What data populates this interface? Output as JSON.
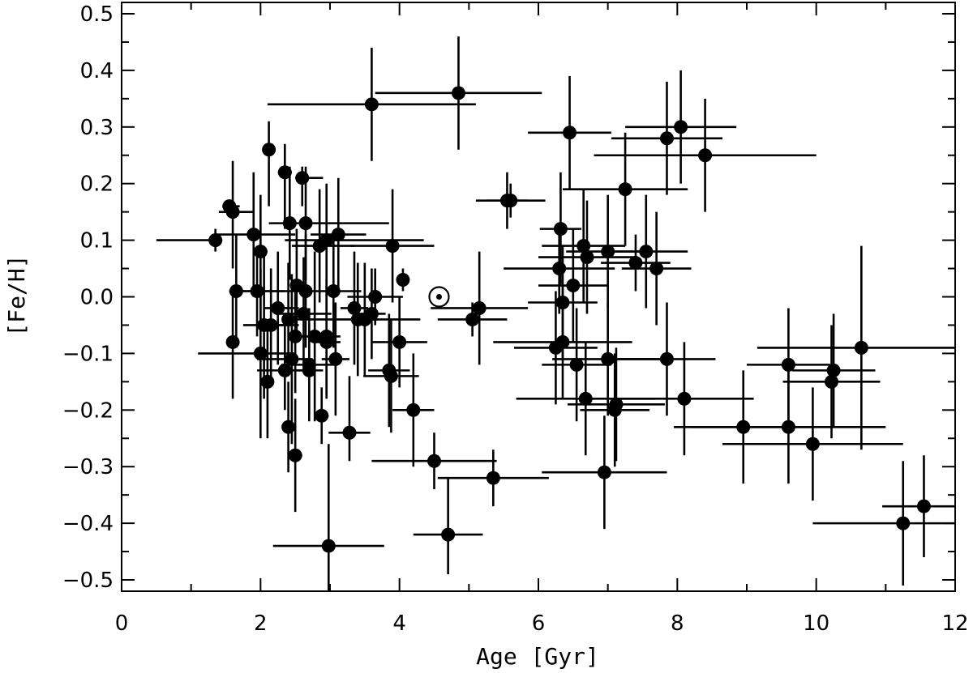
{
  "chart_data": {
    "type": "scatter",
    "xlabel": "Age [Gyr]",
    "ylabel": "[Fe/H]",
    "xlim": [
      0,
      12
    ],
    "ylim": [
      -0.52,
      0.52
    ],
    "x_ticks": [
      0,
      2,
      4,
      6,
      8,
      10,
      12
    ],
    "x_tick_labels": [
      "0",
      "2",
      "4",
      "6",
      "8",
      "10",
      "12"
    ],
    "y_ticks": [
      -0.5,
      -0.4,
      -0.3,
      -0.2,
      -0.1,
      0.0,
      0.1,
      0.2,
      0.3,
      0.4,
      0.5
    ],
    "y_tick_labels": [
      "−0.5",
      "−0.4",
      "−0.3",
      "−0.2",
      "−0.1",
      "0.0",
      "0.1",
      "0.2",
      "0.3",
      "0.4",
      "0.5"
    ],
    "grid": false,
    "error_bars": true,
    "marker_color": "#000000",
    "sun": {
      "x": 4.57,
      "y": 0.0,
      "symbol": "sun-symbol"
    },
    "points": [
      {
        "x": 1.35,
        "y": 0.1,
        "xerr": [
          0.85,
          0.1
        ],
        "yerr": [
          0.02,
          0.02
        ]
      },
      {
        "x": 1.55,
        "y": 0.16,
        "xerr": [
          0.1,
          0.15
        ],
        "yerr": [
          0.01,
          0.01
        ]
      },
      {
        "x": 1.6,
        "y": 0.15,
        "xerr": [
          0.2,
          0.3
        ],
        "yerr": [
          0.1,
          0.09
        ]
      },
      {
        "x": 1.6,
        "y": -0.08,
        "xerr": [
          0.05,
          0.05
        ],
        "yerr": [
          0.1,
          0.1
        ]
      },
      {
        "x": 1.65,
        "y": 0.01,
        "xerr": [
          0.1,
          0.7
        ],
        "yerr": [
          0.1,
          0.1
        ]
      },
      {
        "x": 1.9,
        "y": 0.11,
        "xerr": [
          0.55,
          0.6
        ],
        "yerr": [
          0.11,
          0.11
        ]
      },
      {
        "x": 1.95,
        "y": 0.01,
        "xerr": [
          0.4,
          0.6
        ],
        "yerr": [
          0.08,
          0.08
        ]
      },
      {
        "x": 2.0,
        "y": 0.08,
        "xerr": [
          0.1,
          0.1
        ],
        "yerr": [
          0.12,
          0.1
        ]
      },
      {
        "x": 2.0,
        "y": -0.1,
        "xerr": [
          0.9,
          0.5
        ],
        "yerr": [
          0.15,
          0.15
        ]
      },
      {
        "x": 2.05,
        "y": -0.05,
        "xerr": [
          0.3,
          0.4
        ],
        "yerr": [
          0.13,
          0.13
        ]
      },
      {
        "x": 2.1,
        "y": -0.15,
        "xerr": [
          0.05,
          0.05
        ],
        "yerr": [
          0.1,
          0.1
        ]
      },
      {
        "x": 2.12,
        "y": 0.26,
        "xerr": [
          0.05,
          0.05
        ],
        "yerr": [
          0.1,
          0.05
        ]
      },
      {
        "x": 2.15,
        "y": -0.05,
        "xerr": [
          0.1,
          0.4
        ],
        "yerr": [
          0.1,
          0.1
        ]
      },
      {
        "x": 2.25,
        "y": -0.02,
        "xerr": [
          0.2,
          0.3
        ],
        "yerr": [
          0.1,
          0.1
        ]
      },
      {
        "x": 2.35,
        "y": -0.13,
        "xerr": [
          0.4,
          0.4
        ],
        "yerr": [
          0.07,
          0.08
        ]
      },
      {
        "x": 2.35,
        "y": 0.22,
        "xerr": [
          0.1,
          0.1
        ],
        "yerr": [
          0.1,
          0.05
        ]
      },
      {
        "x": 2.4,
        "y": -0.04,
        "xerr": [
          0.05,
          0.05
        ],
        "yerr": [
          0.1,
          0.1
        ]
      },
      {
        "x": 2.4,
        "y": -0.23,
        "xerr": [
          0.05,
          0.05
        ],
        "yerr": [
          0.08,
          0.08
        ]
      },
      {
        "x": 2.42,
        "y": 0.13,
        "xerr": [
          0.3,
          0.2
        ],
        "yerr": [
          0.1,
          0.1
        ]
      },
      {
        "x": 2.45,
        "y": -0.11,
        "xerr": [
          0.5,
          0.3
        ],
        "yerr": [
          0.15,
          0.15
        ]
      },
      {
        "x": 2.5,
        "y": -0.28,
        "xerr": [
          0.1,
          0.1
        ],
        "yerr": [
          0.1,
          0.1
        ]
      },
      {
        "x": 2.5,
        "y": -0.07,
        "xerr": [
          0.1,
          0.1
        ],
        "yerr": [
          0.1,
          0.08
        ]
      },
      {
        "x": 2.52,
        "y": 0.02,
        "xerr": [
          0.05,
          0.05
        ],
        "yerr": [
          0.1,
          0.1
        ]
      },
      {
        "x": 2.6,
        "y": 0.21,
        "xerr": [
          0.1,
          0.3
        ],
        "yerr": [
          0.05,
          0.02
        ]
      },
      {
        "x": 2.62,
        "y": -0.03,
        "xerr": [
          0.4,
          0.4
        ],
        "yerr": [
          0.1,
          0.1
        ]
      },
      {
        "x": 2.65,
        "y": 0.01,
        "xerr": [
          0.1,
          0.1
        ],
        "yerr": [
          0.1,
          0.1
        ]
      },
      {
        "x": 2.65,
        "y": 0.13,
        "xerr": [
          0.1,
          1.2
        ],
        "yerr": [
          0.1,
          0.1
        ]
      },
      {
        "x": 2.7,
        "y": -0.12,
        "xerr": [
          0.4,
          0.4
        ],
        "yerr": [
          0.1,
          0.1
        ]
      },
      {
        "x": 2.7,
        "y": -0.13,
        "xerr": [
          0.2,
          0.2
        ],
        "yerr": [
          0.08,
          0.08
        ]
      },
      {
        "x": 2.78,
        "y": -0.07,
        "xerr": [
          0.3,
          0.3
        ],
        "yerr": [
          0.15,
          0.15
        ]
      },
      {
        "x": 2.85,
        "y": 0.09,
        "xerr": [
          0.4,
          0.5
        ],
        "yerr": [
          0.1,
          0.1
        ]
      },
      {
        "x": 2.88,
        "y": -0.21,
        "xerr": [
          0.1,
          0.1
        ],
        "yerr": [
          0.05,
          0.05
        ]
      },
      {
        "x": 2.95,
        "y": -0.07,
        "xerr": [
          0.2,
          0.2
        ],
        "yerr": [
          0.1,
          0.1
        ]
      },
      {
        "x": 2.95,
        "y": -0.08,
        "xerr": [
          0.2,
          0.2
        ],
        "yerr": [
          0.1,
          0.1
        ]
      },
      {
        "x": 2.95,
        "y": 0.1,
        "xerr": [
          0.6,
          1.4
        ],
        "yerr": [
          0.1,
          0.1
        ]
      },
      {
        "x": 2.98,
        "y": -0.44,
        "xerr": [
          0.8,
          0.8
        ],
        "yerr": [
          0.15,
          0.18
        ]
      },
      {
        "x": 3.05,
        "y": 0.01,
        "xerr": [
          0.4,
          0.4
        ],
        "yerr": [
          0.1,
          0.1
        ]
      },
      {
        "x": 3.08,
        "y": -0.11,
        "xerr": [
          0.2,
          0.2
        ],
        "yerr": [
          0.1,
          0.1
        ]
      },
      {
        "x": 3.12,
        "y": 0.11,
        "xerr": [
          0.4,
          0.4
        ],
        "yerr": [
          0.1,
          0.1
        ]
      },
      {
        "x": 3.28,
        "y": -0.24,
        "xerr": [
          0.3,
          0.3
        ],
        "yerr": [
          0.05,
          0.1
        ]
      },
      {
        "x": 3.35,
        "y": -0.02,
        "xerr": [
          0.2,
          0.2
        ],
        "yerr": [
          0.1,
          0.1
        ]
      },
      {
        "x": 3.4,
        "y": -0.04,
        "xerr": [
          0.9,
          0.9
        ],
        "yerr": [
          0.1,
          0.1
        ]
      },
      {
        "x": 3.5,
        "y": -0.04,
        "xerr": [
          0.2,
          0.2
        ],
        "yerr": [
          0.1,
          0.1
        ]
      },
      {
        "x": 3.6,
        "y": 0.34,
        "xerr": [
          1.5,
          1.5
        ],
        "yerr": [
          0.1,
          0.1
        ]
      },
      {
        "x": 3.6,
        "y": -0.03,
        "xerr": [
          0.2,
          0.2
        ],
        "yerr": [
          0.08,
          0.08
        ]
      },
      {
        "x": 3.65,
        "y": 0.0,
        "xerr": [
          0.4,
          0.4
        ],
        "yerr": [
          0.05,
          0.05
        ]
      },
      {
        "x": 3.85,
        "y": -0.13,
        "xerr": [
          0.3,
          0.3
        ],
        "yerr": [
          0.1,
          0.1
        ]
      },
      {
        "x": 3.88,
        "y": -0.14,
        "xerr": [
          0.4,
          0.4
        ],
        "yerr": [
          0.1,
          0.1
        ]
      },
      {
        "x": 3.9,
        "y": 0.09,
        "xerr": [
          0.6,
          0.6
        ],
        "yerr": [
          0.1,
          0.1
        ]
      },
      {
        "x": 4.0,
        "y": -0.08,
        "xerr": [
          0.4,
          0.4
        ],
        "yerr": [
          0.08,
          0.08
        ]
      },
      {
        "x": 4.05,
        "y": 0.03,
        "xerr": [
          0.05,
          0.05
        ],
        "yerr": [
          0.02,
          0.02
        ]
      },
      {
        "x": 4.2,
        "y": -0.2,
        "xerr": [
          0.3,
          0.3
        ],
        "yerr": [
          0.1,
          0.1
        ]
      },
      {
        "x": 4.5,
        "y": -0.29,
        "xerr": [
          0.9,
          0.9
        ],
        "yerr": [
          0.05,
          0.05
        ]
      },
      {
        "x": 4.7,
        "y": -0.42,
        "xerr": [
          0.5,
          0.5
        ],
        "yerr": [
          0.07,
          0.1
        ]
      },
      {
        "x": 4.85,
        "y": 0.36,
        "xerr": [
          1.2,
          1.2
        ],
        "yerr": [
          0.1,
          0.1
        ]
      },
      {
        "x": 5.05,
        "y": -0.04,
        "xerr": [
          0.5,
          0.5
        ],
        "yerr": [
          0.03,
          0.03
        ]
      },
      {
        "x": 5.15,
        "y": -0.02,
        "xerr": [
          0.7,
          0.7
        ],
        "yerr": [
          0.1,
          0.1
        ]
      },
      {
        "x": 5.35,
        "y": -0.32,
        "xerr": [
          0.8,
          0.8
        ],
        "yerr": [
          0.05,
          0.05
        ]
      },
      {
        "x": 5.55,
        "y": 0.17,
        "xerr": [
          0.3,
          0.3
        ],
        "yerr": [
          0.05,
          0.05
        ]
      },
      {
        "x": 5.6,
        "y": 0.17,
        "xerr": [
          0.5,
          0.5
        ],
        "yerr": [
          0.03,
          0.03
        ]
      },
      {
        "x": 6.25,
        "y": -0.09,
        "xerr": [
          0.6,
          0.6
        ],
        "yerr": [
          0.1,
          0.1
        ]
      },
      {
        "x": 6.3,
        "y": 0.05,
        "xerr": [
          0.8,
          0.8
        ],
        "yerr": [
          0.08,
          0.08
        ]
      },
      {
        "x": 6.32,
        "y": 0.12,
        "xerr": [
          0.3,
          0.3
        ],
        "yerr": [
          0.1,
          0.1
        ]
      },
      {
        "x": 6.35,
        "y": -0.01,
        "xerr": [
          0.5,
          0.5
        ],
        "yerr": [
          0.1,
          0.1
        ]
      },
      {
        "x": 6.35,
        "y": -0.08,
        "xerr": [
          1.0,
          1.0
        ],
        "yerr": [
          0.1,
          0.1
        ]
      },
      {
        "x": 6.45,
        "y": 0.29,
        "xerr": [
          0.6,
          0.6
        ],
        "yerr": [
          0.1,
          0.1
        ]
      },
      {
        "x": 6.5,
        "y": 0.02,
        "xerr": [
          0.5,
          0.5
        ],
        "yerr": [
          0.1,
          0.1
        ]
      },
      {
        "x": 6.55,
        "y": -0.12,
        "xerr": [
          0.5,
          0.5
        ],
        "yerr": [
          0.1,
          0.1
        ]
      },
      {
        "x": 6.65,
        "y": 0.09,
        "xerr": [
          0.6,
          0.6
        ],
        "yerr": [
          0.1,
          0.1
        ]
      },
      {
        "x": 6.68,
        "y": -0.18,
        "xerr": [
          1.0,
          1.0
        ],
        "yerr": [
          0.1,
          0.1
        ]
      },
      {
        "x": 6.7,
        "y": 0.07,
        "xerr": [
          0.7,
          0.7
        ],
        "yerr": [
          0.1,
          0.1
        ]
      },
      {
        "x": 6.95,
        "y": -0.31,
        "xerr": [
          0.9,
          0.9
        ],
        "yerr": [
          0.1,
          0.1
        ]
      },
      {
        "x": 7.0,
        "y": 0.08,
        "xerr": [
          0.6,
          0.6
        ],
        "yerr": [
          0.1,
          0.1
        ]
      },
      {
        "x": 7.0,
        "y": -0.11,
        "xerr": [
          0.8,
          0.8
        ],
        "yerr": [
          0.1,
          0.1
        ]
      },
      {
        "x": 7.1,
        "y": -0.2,
        "xerr": [
          0.5,
          0.5
        ],
        "yerr": [
          0.1,
          0.1
        ]
      },
      {
        "x": 7.12,
        "y": -0.19,
        "xerr": [
          0.7,
          0.7
        ],
        "yerr": [
          0.1,
          0.1
        ]
      },
      {
        "x": 7.25,
        "y": 0.19,
        "xerr": [
          0.9,
          0.9
        ],
        "yerr": [
          0.1,
          0.1
        ]
      },
      {
        "x": 7.4,
        "y": 0.06,
        "xerr": [
          0.5,
          0.5
        ],
        "yerr": [
          0.05,
          0.05
        ]
      },
      {
        "x": 7.55,
        "y": 0.08,
        "xerr": [
          0.6,
          0.6
        ],
        "yerr": [
          0.1,
          0.1
        ]
      },
      {
        "x": 7.7,
        "y": 0.05,
        "xerr": [
          0.5,
          0.5
        ],
        "yerr": [
          0.1,
          0.1
        ]
      },
      {
        "x": 7.85,
        "y": 0.28,
        "xerr": [
          0.8,
          0.8
        ],
        "yerr": [
          0.1,
          0.1
        ]
      },
      {
        "x": 7.85,
        "y": -0.11,
        "xerr": [
          0.7,
          0.7
        ],
        "yerr": [
          0.1,
          0.1
        ]
      },
      {
        "x": 8.05,
        "y": 0.3,
        "xerr": [
          0.8,
          0.8
        ],
        "yerr": [
          0.1,
          0.1
        ]
      },
      {
        "x": 8.1,
        "y": -0.18,
        "xerr": [
          1.0,
          1.0
        ],
        "yerr": [
          0.1,
          0.1
        ]
      },
      {
        "x": 8.4,
        "y": 0.25,
        "xerr": [
          1.6,
          1.6
        ],
        "yerr": [
          0.1,
          0.1
        ]
      },
      {
        "x": 8.95,
        "y": -0.23,
        "xerr": [
          1.0,
          1.0
        ],
        "yerr": [
          0.1,
          0.1
        ]
      },
      {
        "x": 9.6,
        "y": -0.12,
        "xerr": [
          0.6,
          0.6
        ],
        "yerr": [
          0.1,
          0.1
        ]
      },
      {
        "x": 9.6,
        "y": -0.23,
        "xerr": [
          1.4,
          1.4
        ],
        "yerr": [
          0.1,
          0.1
        ]
      },
      {
        "x": 9.95,
        "y": -0.26,
        "xerr": [
          1.3,
          1.3
        ],
        "yerr": [
          0.1,
          0.1
        ]
      },
      {
        "x": 10.22,
        "y": -0.15,
        "xerr": [
          0.7,
          0.7
        ],
        "yerr": [
          0.1,
          0.1
        ]
      },
      {
        "x": 10.25,
        "y": -0.13,
        "xerr": [
          0.6,
          0.6
        ],
        "yerr": [
          0.1,
          0.1
        ]
      },
      {
        "x": 10.65,
        "y": -0.09,
        "xerr": [
          1.5,
          1.5
        ],
        "yerr": [
          0.18,
          0.18
        ]
      },
      {
        "x": 11.25,
        "y": -0.4,
        "xerr": [
          1.3,
          1.3
        ],
        "yerr": [
          0.11,
          0.11
        ]
      },
      {
        "x": 11.55,
        "y": -0.37,
        "xerr": [
          0.6,
          0.6
        ],
        "yerr": [
          0.09,
          0.09
        ]
      }
    ]
  }
}
